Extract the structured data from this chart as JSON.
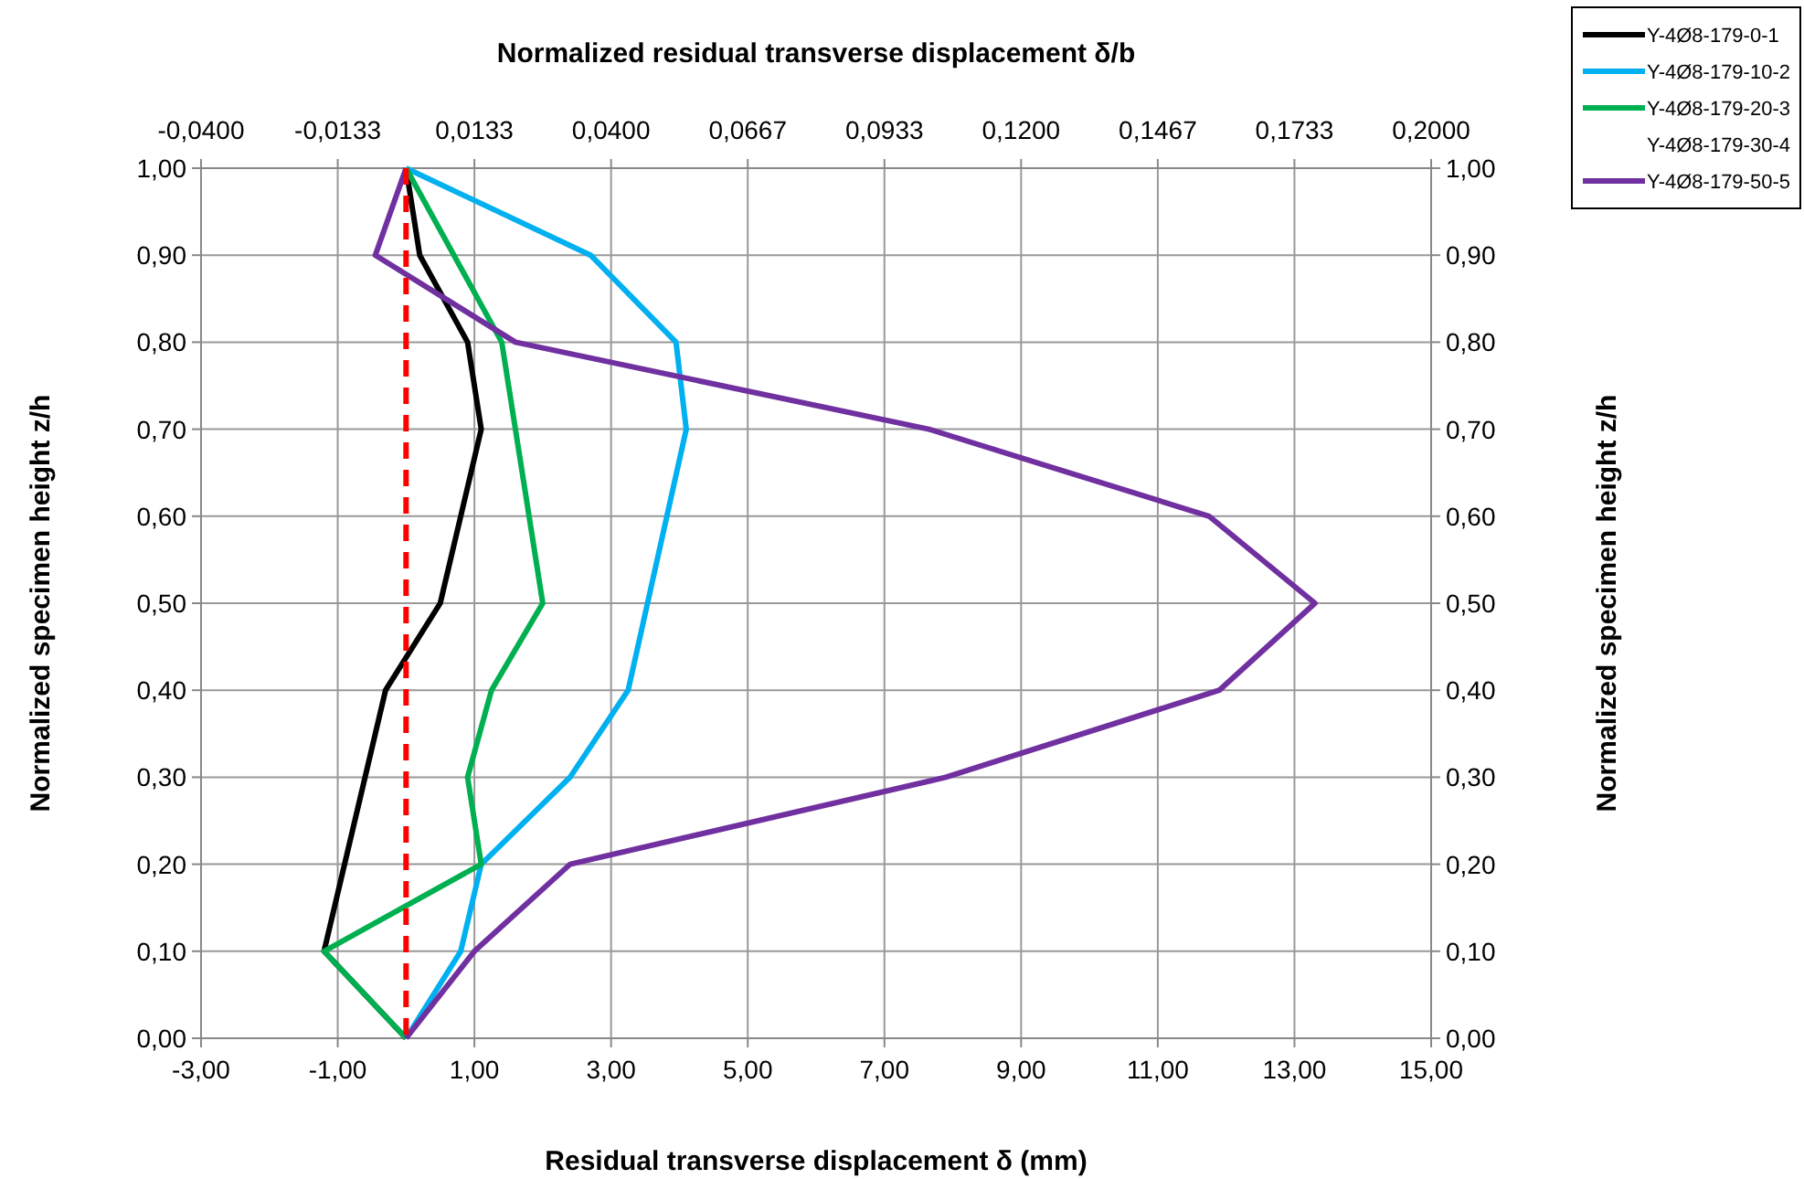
{
  "chart_data": {
    "type": "line",
    "xlabel": "Residual transverse displacement  δ (mm)",
    "ylabel": "Normalized specimen height z/h",
    "y2label": "Normalized specimen height z/h",
    "x2label": "Normalized residual transverse displacement  δ/b",
    "xlim": [
      -3,
      15
    ],
    "xticks": [
      {
        "value": -3,
        "label": "-3,00"
      },
      {
        "value": -1,
        "label": "-1,00"
      },
      {
        "value": 1,
        "label": "1,00"
      },
      {
        "value": 3,
        "label": "3,00"
      },
      {
        "value": 5,
        "label": "5,00"
      },
      {
        "value": 7,
        "label": "7,00"
      },
      {
        "value": 9,
        "label": "9,00"
      },
      {
        "value": 11,
        "label": "11,00"
      },
      {
        "value": 13,
        "label": "13,00"
      },
      {
        "value": 15,
        "label": "15,00"
      }
    ],
    "x2lim": [
      -0.04,
      0.2
    ],
    "x2ticks": [
      {
        "value": -0.04,
        "label": "-0,0400"
      },
      {
        "value": -0.013333,
        "label": "-0,0133"
      },
      {
        "value": 0.013333,
        "label": "0,0133"
      },
      {
        "value": 0.04,
        "label": "0,0400"
      },
      {
        "value": 0.066667,
        "label": "0,0667"
      },
      {
        "value": 0.093333,
        "label": "0,0933"
      },
      {
        "value": 0.12,
        "label": "0,1200"
      },
      {
        "value": 0.146667,
        "label": "0,1467"
      },
      {
        "value": 0.173333,
        "label": "0,1733"
      },
      {
        "value": 0.2,
        "label": "0,2000"
      }
    ],
    "ylim": [
      0,
      1
    ],
    "yticks": [
      {
        "value": 0,
        "label": "0,00"
      },
      {
        "value": 0.1,
        "label": "0,10"
      },
      {
        "value": 0.2,
        "label": "0,20"
      },
      {
        "value": 0.3,
        "label": "0,30"
      },
      {
        "value": 0.4,
        "label": "0,40"
      },
      {
        "value": 0.5,
        "label": "0,50"
      },
      {
        "value": 0.6,
        "label": "0,60"
      },
      {
        "value": 0.7,
        "label": "0,70"
      },
      {
        "value": 0.8,
        "label": "0,80"
      },
      {
        "value": 0.9,
        "label": "0,90"
      },
      {
        "value": 1,
        "label": "1,00"
      }
    ],
    "y2lim": [
      0,
      1
    ],
    "y2ticks": [
      {
        "value": 0,
        "label": "0,00"
      },
      {
        "value": 0.1,
        "label": "0,10"
      },
      {
        "value": 0.2,
        "label": "0,20"
      },
      {
        "value": 0.3,
        "label": "0,30"
      },
      {
        "value": 0.4,
        "label": "0,40"
      },
      {
        "value": 0.5,
        "label": "0,50"
      },
      {
        "value": 0.6,
        "label": "0,60"
      },
      {
        "value": 0.7,
        "label": "0,70"
      },
      {
        "value": 0.8,
        "label": "0,80"
      },
      {
        "value": 0.9,
        "label": "0,90"
      },
      {
        "value": 1,
        "label": "1,00"
      }
    ],
    "grid": true,
    "legend": "top right",
    "line_style": "solid",
    "ref_lines": [
      {
        "axis": "x",
        "value": 0,
        "label": null,
        "color": "#ff0000",
        "line_style": "dashed"
      }
    ],
    "series": [
      {
        "name": "Y-4Ø8-179-0-1",
        "color": "#000000",
        "x": [
          0,
          -1.2,
          -0.3,
          0.5,
          1.1,
          0.9,
          0.2,
          0
        ],
        "values": [
          0,
          0.1,
          0.4,
          0.5,
          0.7,
          0.8,
          0.9,
          1
        ]
      },
      {
        "name": "Y-4Ø8-179-10-2",
        "color": "#00b0f0",
        "x": [
          0,
          0.8,
          1.1,
          2.4,
          3.25,
          4.1,
          3.95,
          2.7,
          0
        ],
        "values": [
          0,
          0.1,
          0.2,
          0.3,
          0.4,
          0.7,
          0.8,
          0.9,
          1
        ]
      },
      {
        "name": "Y-4Ø8-179-20-3",
        "color": "#00b050",
        "x": [
          0,
          -1.2,
          1.1,
          0.9,
          1.25,
          2,
          1.4,
          0
        ],
        "values": [
          0,
          0.1,
          0.2,
          0.3,
          0.4,
          0.5,
          0.8,
          1
        ]
      },
      {
        "name": "Y-4Ø8-179-30-4"
      },
      {
        "name": "Y-4Ø8-179-50-5",
        "color": "#7030a0",
        "x": [
          0,
          1,
          2.4,
          7.9,
          11.9,
          13.3,
          11.75,
          7.65,
          1.6,
          -0.45,
          0
        ],
        "values": [
          0,
          0.1,
          0.2,
          0.3,
          0.4,
          0.5,
          0.6,
          0.7,
          0.8,
          0.9,
          1
        ]
      }
    ]
  }
}
